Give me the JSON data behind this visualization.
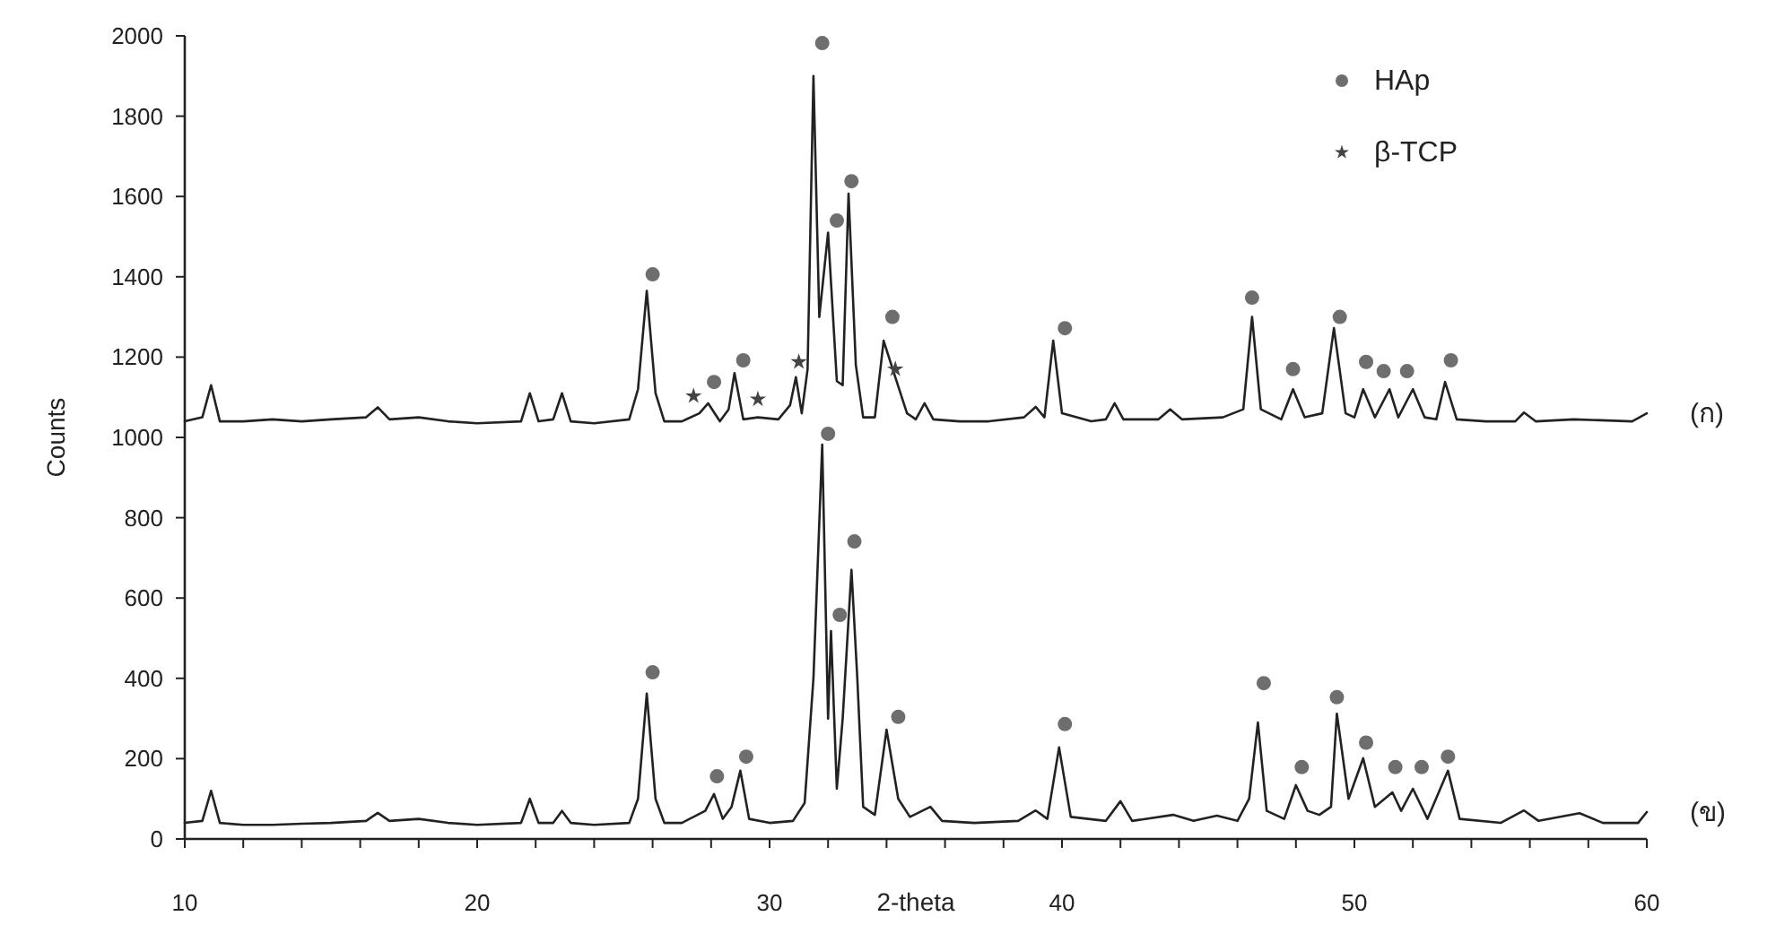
{
  "chart_data": {
    "type": "line",
    "xlabel": "2-theta",
    "ylabel": "Counts",
    "xlim": [
      10,
      60
    ],
    "ylim": [
      0,
      2000
    ],
    "xticks": [
      10,
      {
        "value": 12,
        "label": null
      },
      {
        "value": 14,
        "label": null
      },
      {
        "value": 16,
        "label": null
      },
      {
        "value": 18,
        "label": null
      },
      20,
      {
        "value": 22,
        "label": null
      },
      {
        "value": 24,
        "label": null
      },
      {
        "value": 26,
        "label": null
      },
      {
        "value": 28,
        "label": null
      },
      30,
      {
        "value": 32,
        "label": null
      },
      {
        "value": 34,
        "label": null
      },
      {
        "value": 36,
        "label": null
      },
      {
        "value": 38,
        "label": null
      },
      40,
      {
        "value": 42,
        "label": null
      },
      {
        "value": 44,
        "label": null
      },
      {
        "value": 46,
        "label": null
      },
      {
        "value": 48,
        "label": null
      },
      50,
      {
        "value": 52,
        "label": null
      },
      {
        "value": 54,
        "label": null
      },
      {
        "value": 56,
        "label": null
      },
      {
        "value": 58,
        "label": null
      },
      60
    ],
    "yticks": [
      0,
      200,
      400,
      600,
      800,
      1000,
      1200,
      1400,
      1600,
      1800,
      2000
    ],
    "grid": false,
    "legend": "top right",
    "series": [
      {
        "name": "(ก)",
        "color": "#222222",
        "marker": "none",
        "x": [
          10,
          10.6,
          10.9,
          11.2,
          12,
          13,
          14,
          15,
          16.2,
          16.6,
          17,
          18,
          19,
          20,
          21.5,
          21.8,
          22.1,
          22.6,
          22.9,
          23.2,
          24,
          25.2,
          25.5,
          25.8,
          26.1,
          26.4,
          27,
          27.6,
          27.9,
          28.3,
          28.6,
          28.8,
          29.1,
          29.6,
          30.3,
          30.7,
          30.9,
          31.1,
          31.3,
          31.5,
          31.7,
          32.0,
          32.3,
          32.5,
          32.7,
          32.95,
          33.2,
          33.6,
          33.9,
          34.3,
          34.7,
          35.0,
          35.3,
          35.6,
          36.5,
          37.5,
          38.7,
          39.1,
          39.4,
          39.7,
          40.0,
          41,
          41.5,
          41.8,
          42.1,
          43.3,
          43.7,
          44.1,
          45.5,
          46.2,
          46.5,
          46.8,
          47.5,
          47.9,
          48.3,
          48.9,
          49.3,
          49.7,
          50.0,
          50.3,
          50.7,
          51.2,
          51.5,
          52.0,
          52.4,
          52.8,
          53.1,
          53.5,
          54.5,
          55.5,
          55.8,
          56.2,
          57.5,
          59.5,
          60
        ],
        "values": [
          1040,
          1050,
          1130,
          1040,
          1040,
          1045,
          1040,
          1045,
          1050,
          1075,
          1045,
          1050,
          1040,
          1035,
          1040,
          1110,
          1040,
          1045,
          1110,
          1040,
          1035,
          1045,
          1120,
          1365,
          1110,
          1040,
          1040,
          1060,
          1085,
          1040,
          1070,
          1160,
          1045,
          1050,
          1045,
          1080,
          1150,
          1060,
          1170,
          1900,
          1300,
          1510,
          1140,
          1130,
          1607,
          1180,
          1050,
          1050,
          1241,
          1150,
          1060,
          1045,
          1085,
          1045,
          1040,
          1040,
          1050,
          1076,
          1050,
          1241,
          1060,
          1040,
          1045,
          1085,
          1045,
          1045,
          1070,
          1045,
          1050,
          1070,
          1300,
          1070,
          1045,
          1120,
          1050,
          1060,
          1272,
          1060,
          1050,
          1120,
          1050,
          1120,
          1050,
          1120,
          1050,
          1045,
          1138,
          1045,
          1040,
          1040,
          1062,
          1040,
          1045,
          1040,
          1060
        ]
      },
      {
        "name": "(ข)",
        "color": "#222222",
        "marker": "none",
        "x": [
          10,
          10.6,
          10.9,
          11.2,
          12,
          13,
          14,
          15,
          16.2,
          16.6,
          17,
          18,
          19,
          20,
          21.5,
          21.8,
          22.1,
          22.6,
          22.9,
          23.2,
          24,
          25.2,
          25.5,
          25.8,
          26.1,
          26.4,
          27,
          27.8,
          28.1,
          28.4,
          28.7,
          29.0,
          29.3,
          30,
          30.8,
          31.2,
          31.5,
          31.8,
          32.0,
          32.1,
          32.3,
          32.5,
          32.8,
          33.0,
          33.2,
          33.6,
          34.0,
          34.4,
          34.8,
          35.5,
          35.9,
          37,
          38.5,
          39.1,
          39.5,
          39.9,
          40.3,
          41.5,
          42.0,
          42.4,
          43.8,
          44.5,
          45.3,
          46.0,
          46.4,
          46.7,
          47.0,
          47.6,
          48.0,
          48.4,
          48.8,
          49.2,
          49.4,
          49.8,
          50.3,
          50.7,
          51.3,
          51.6,
          52.0,
          52.5,
          53.2,
          53.6,
          55,
          55.8,
          56.3,
          57.7,
          58.5,
          59.7,
          60
        ],
        "values": [
          40,
          45,
          120,
          40,
          35,
          35,
          38,
          40,
          45,
          65,
          45,
          50,
          40,
          35,
          40,
          100,
          40,
          40,
          70,
          40,
          35,
          40,
          100,
          362,
          100,
          40,
          40,
          70,
          112,
          50,
          80,
          170,
          50,
          40,
          45,
          90,
          400,
          982,
          300,
          518,
          125,
          300,
          670,
          400,
          80,
          60,
          272,
          100,
          55,
          80,
          45,
          40,
          45,
          71,
          50,
          228,
          55,
          45,
          94,
          45,
          60,
          45,
          58,
          45,
          100,
          290,
          70,
          50,
          134,
          70,
          60,
          80,
          312,
          100,
          201,
          80,
          116,
          70,
          125,
          50,
          170,
          50,
          40,
          71,
          45,
          64,
          40,
          40,
          67
        ]
      },
      {
        "name": "HAp",
        "type": "scatter",
        "color": "#6e6e6e",
        "marker": "circle",
        "x": [
          26.0,
          28.1,
          29.1,
          31.8,
          32.3,
          32.8,
          34.2,
          40.1,
          46.5,
          47.9,
          49.5,
          50.4,
          51.0,
          51.8,
          53.3,
          26.0,
          28.2,
          29.2,
          32.0,
          32.4,
          32.9,
          34.4,
          40.1,
          46.9,
          48.2,
          49.4,
          50.4,
          51.4,
          52.3,
          53.2
        ],
        "values": [
          1406,
          1138,
          1192,
          1982,
          1540,
          1638,
          1300,
          1272,
          1348,
          1170,
          1300,
          1188,
          1165,
          1165,
          1192,
          415,
          156,
          205,
          1009,
          558,
          741,
          304,
          286,
          388,
          179,
          353,
          240,
          179,
          179,
          205
        ]
      },
      {
        "name": "β-TCP",
        "type": "scatter",
        "color": "#444444",
        "marker": "star",
        "x": [
          27.4,
          29.6,
          31.0,
          34.3
        ],
        "values": [
          1103,
          1095,
          1188,
          1170
        ]
      }
    ]
  }
}
